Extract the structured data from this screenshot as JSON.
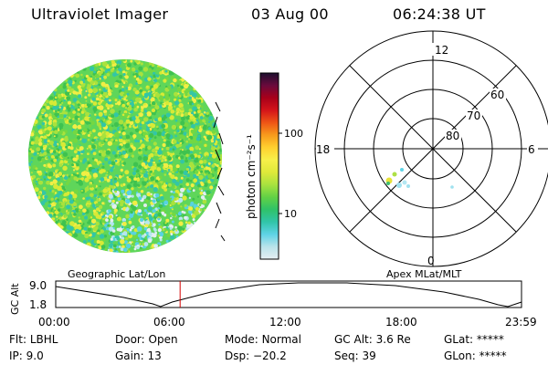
{
  "header": {
    "instrument": "Ultraviolet Imager",
    "date": "03 Aug 00",
    "time": "06:24:38 UT"
  },
  "colorbar": {
    "unit_label": "photon cm⁻²s⁻¹",
    "ticks": [
      "100",
      "10"
    ],
    "stops": [
      "#e6eef2",
      "#b9e3ea",
      "#5fd3e6",
      "#31c4a8",
      "#2fc268",
      "#62d145",
      "#a8e23f",
      "#dfe93a",
      "#f7f04a",
      "#ffd02f",
      "#f79a1c",
      "#ee5516",
      "#d4141a",
      "#a8001a",
      "#6a0a3c",
      "#1d0f2f"
    ]
  },
  "polar_plot": {
    "mlt_labels": {
      "top": "12",
      "left": "18",
      "right": "6",
      "bottom": "0"
    },
    "lat_labels": [
      "60",
      "70",
      "80"
    ]
  },
  "timeline": {
    "axis_label": "GC Alt",
    "y_ticks": [
      "9.0",
      "1.8"
    ],
    "left_title": "Geographic Lat/Lon",
    "right_title": "Apex MLat/MLT",
    "x_ticks": [
      "00:00",
      "06:00",
      "12:00",
      "18:00",
      "23:59"
    ],
    "current_marker_hours": 6.41
  },
  "info": {
    "flt": {
      "label": "Flt:",
      "value": "LBHL"
    },
    "ip": {
      "label": "IP:",
      "value": "9.0"
    },
    "door": {
      "label": "Door:",
      "value": "Open"
    },
    "gain": {
      "label": "Gain:",
      "value": "13"
    },
    "mode": {
      "label": "Mode:",
      "value": "Normal"
    },
    "dsp": {
      "label": "Dsp:",
      "value": "−20.2"
    },
    "gcalt": {
      "label": "GC Alt:",
      "value": "3.6 Re"
    },
    "seq": {
      "label": "Seq:",
      "value": "39"
    },
    "glat": {
      "label": "GLat:",
      "value": "*****"
    },
    "glon": {
      "label": "GLon:",
      "value": "*****"
    }
  },
  "colors": {
    "marker": "#d40000",
    "foreground": "#000000"
  }
}
